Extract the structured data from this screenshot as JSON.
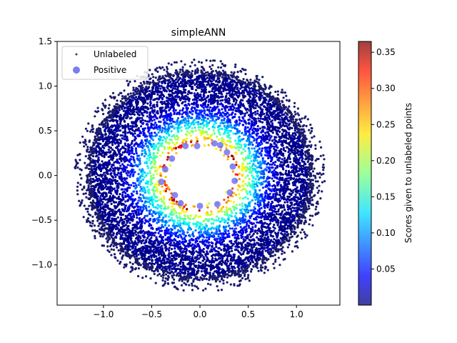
{
  "chart_data": {
    "type": "scatter",
    "title": "simpleANN",
    "xlabel": "",
    "ylabel": "",
    "xlim": [
      -1.48,
      1.45
    ],
    "ylim": [
      -1.45,
      1.5
    ],
    "x_ticks": [
      -1.0,
      -0.5,
      0.0,
      0.5,
      1.0
    ],
    "x_tick_labels": [
      "−1.0",
      "−0.5",
      "0.0",
      "0.5",
      "1.0"
    ],
    "y_ticks": [
      -1.0,
      -0.5,
      0.0,
      0.5,
      1.0,
      1.5
    ],
    "y_tick_labels": [
      "−1.0",
      "−0.5",
      "0.0",
      "0.5",
      "1.0",
      "1.5"
    ],
    "grid": false,
    "legend": {
      "position": "top-left",
      "entries": [
        {
          "label": "Unlabeled",
          "marker": "small dot",
          "color": "#404040"
        },
        {
          "label": "Positive",
          "marker": "large dot",
          "color": "#7b7cf0"
        }
      ]
    },
    "series": [
      {
        "name": "Unlabeled",
        "kind": "annulus",
        "inner_radius": 0.32,
        "outer_radius": 1.3,
        "peak_score_radius": 0.4,
        "score_range": [
          0.0,
          0.36
        ],
        "colormap": "jet"
      },
      {
        "name": "Positive",
        "x": [
          -0.03,
          -0.29,
          -0.36,
          -0.4,
          -0.26,
          0.0,
          0.18,
          0.31,
          0.36,
          0.34,
          0.28,
          0.21,
          -0.15,
          0.15,
          -0.2
        ],
        "y": [
          0.33,
          0.19,
          0.07,
          -0.07,
          -0.22,
          -0.34,
          -0.32,
          -0.19,
          -0.06,
          0.1,
          0.26,
          0.34,
          0.33,
          0.36,
          -0.31
        ],
        "color": "#7b7cf0"
      }
    ],
    "colorbar": {
      "label": "Scores given to unlabeled points",
      "range": [
        0.0,
        0.365
      ],
      "ticks": [
        0.05,
        0.1,
        0.15,
        0.2,
        0.25,
        0.3,
        0.35
      ],
      "tick_labels": [
        "0.05",
        "0.10",
        "0.15",
        "0.20",
        "0.25",
        "0.30",
        "0.35"
      ],
      "colormap": "jet"
    }
  }
}
